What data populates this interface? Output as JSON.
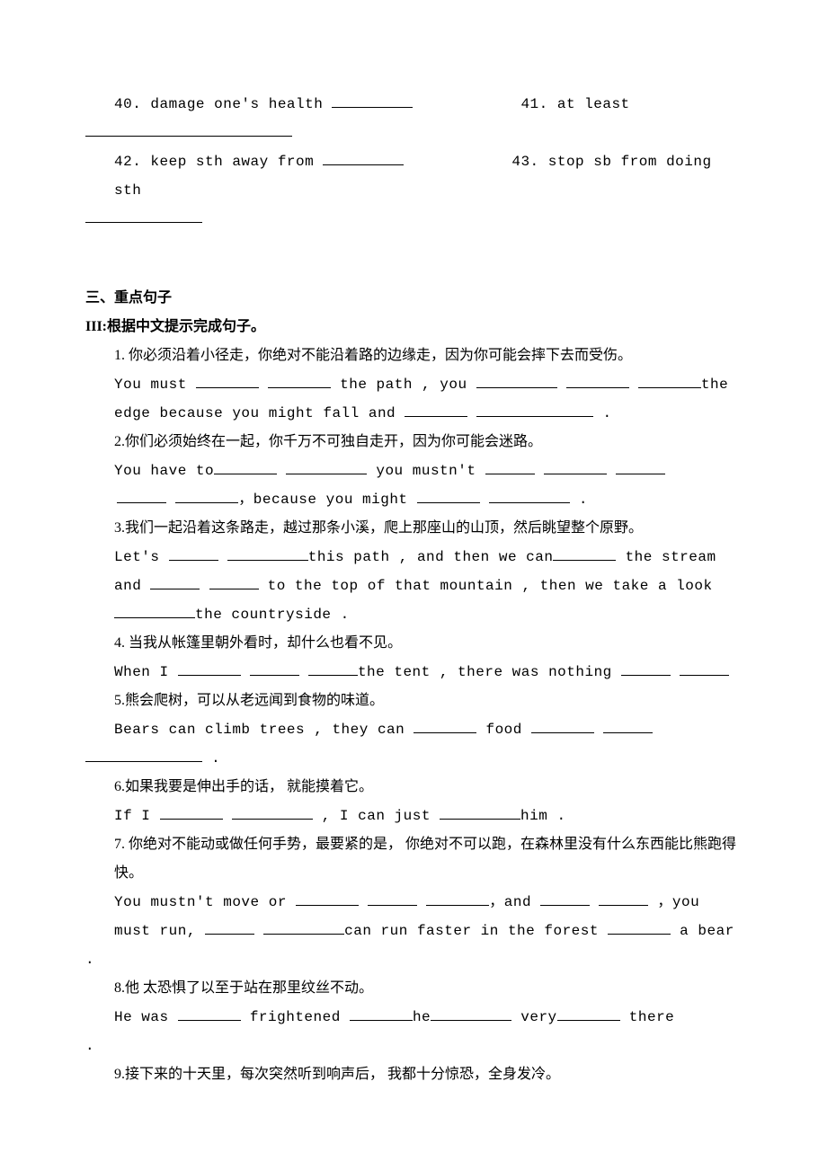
{
  "top_items": {
    "i40": "40. damage one's health ",
    "i41": "41. at least",
    "i42": "42. keep sth away from ",
    "i43": "43. stop sb from doing sth"
  },
  "section3_heading": "三、重点句子",
  "section3_sub": "III:根据中文提示完成句子。",
  "q1": {
    "cn": "1. 你必须沿着小径走，你绝对不能沿着路的边缘走，因为你可能会摔下去而受伤。",
    "en_a": "You must ",
    "en_b": " the path , you ",
    "en_c": "the",
    "en_d": "edge because you might fall and ",
    "en_e": " ."
  },
  "q2": {
    "cn": "2.你们必须始终在一起，你千万不可独自走开，因为你可能会迷路。",
    "en_a": " You have to",
    "en_b": " you mustn't ",
    "en_c": "，because you might ",
    "en_d": " ."
  },
  "q3": {
    "cn": "3.我们一起沿着这条路走，越过那条小溪，爬上那座山的山顶，然后眺望整个原野。",
    "en_a": " Let's ",
    "en_b": "this path , and then we can",
    "en_c": " the stream",
    "en_d": "and ",
    "en_e": " to the top of that mountain , then we take a look",
    "en_f": "the countryside ."
  },
  "q4": {
    "cn": "4. 当我从帐篷里朝外看时，却什么也看不见。",
    "en_a": " When I ",
    "en_b": "the tent , there was nothing "
  },
  "q5": {
    "cn": "5.熊会爬树，可以从老远闻到食物的味道。",
    "en_a": "  Bears can climb trees , they can ",
    "en_b": " food ",
    "en_c": " ."
  },
  "q6": {
    "cn": "6.如果我要是伸出手的话， 就能摸着它。",
    "en_a": "  If I ",
    "en_b": " , I can just ",
    "en_c": "him ."
  },
  "q7": {
    "cn": "7. 你绝对不能动或做任何手势，最要紧的是， 你绝对不可以跑，在森林里没有什么东西能比熊跑得快。",
    "en_a": "You mustn't move or ",
    "en_b": "，and ",
    "en_c": " ，you",
    "en_d": "must run, ",
    "en_e": "can run faster in the forest ",
    "en_f": " a bear"
  },
  "q8": {
    "cn": "8.他 太恐惧了以至于站在那里纹丝不动。",
    "en_a": " He was ",
    "en_b": " frightened ",
    "en_c": "he",
    "en_d": "   very",
    "en_e": " there"
  },
  "q9": {
    "cn": "9.接下来的十天里，每次突然听到响声后， 我都十分惊恐，全身发冷。"
  }
}
